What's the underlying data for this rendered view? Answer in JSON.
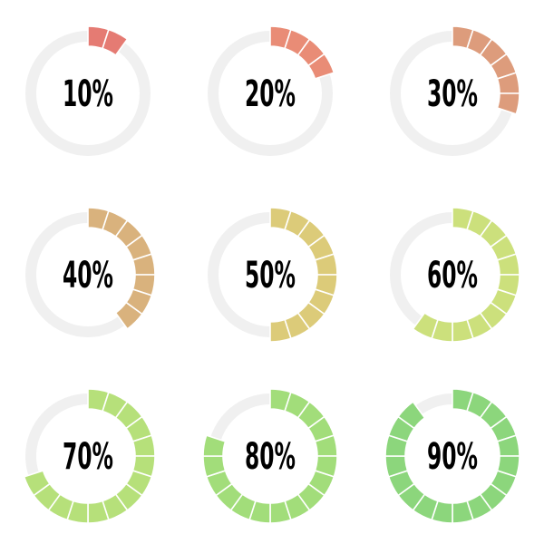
{
  "track_color": "#f0f0f0",
  "segment_divider_color": "#ffffff",
  "segments_per_ring": 20,
  "gauges": [
    {
      "label": "10%",
      "value": 10,
      "fill_color": "#e57b73"
    },
    {
      "label": "20%",
      "value": 20,
      "fill_color": "#e98c76"
    },
    {
      "label": "30%",
      "value": 30,
      "fill_color": "#dd9c7c"
    },
    {
      "label": "40%",
      "value": 40,
      "fill_color": "#d9b27d"
    },
    {
      "label": "50%",
      "value": 50,
      "fill_color": "#dccb79"
    },
    {
      "label": "60%",
      "value": 60,
      "fill_color": "#cce07c"
    },
    {
      "label": "70%",
      "value": 70,
      "fill_color": "#b6e07a"
    },
    {
      "label": "80%",
      "value": 80,
      "fill_color": "#a2dd7a"
    },
    {
      "label": "90%",
      "value": 90,
      "fill_color": "#8cd67c"
    }
  ]
}
